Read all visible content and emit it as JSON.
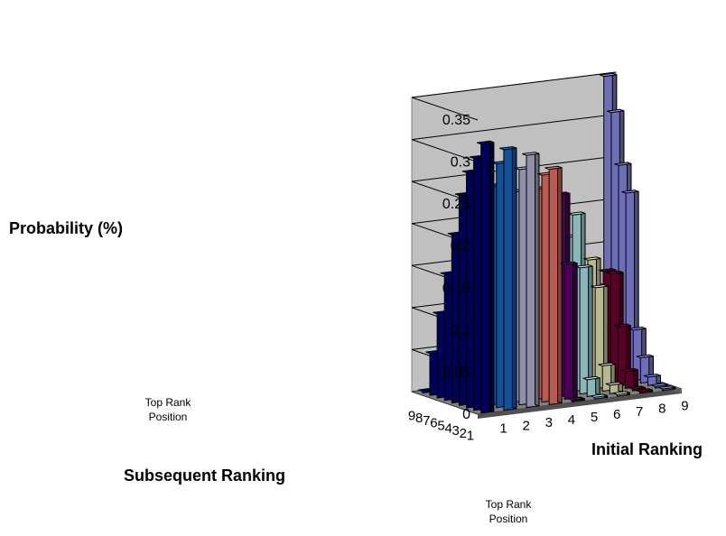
{
  "chart_data": {
    "type": "bar3d",
    "title": "",
    "zlabel": "Probability (%)",
    "xlabel": "Initial Ranking",
    "ylabel": "Subsequent Ranking",
    "xnote": "Top Rank Position",
    "ynote": "Top Rank Position",
    "zlim": [
      0,
      0.35
    ],
    "zticks": [
      "0",
      "0.05",
      "0.1",
      "0.15",
      "0.2",
      "0.25",
      "0.3",
      "0.35"
    ],
    "initial_ranking": [
      "1",
      "2",
      "3",
      "4",
      "5",
      "6",
      "7",
      "8",
      "9"
    ],
    "subsequent_ranking": [
      "9",
      "8",
      "7",
      "6",
      "5",
      "4",
      "3",
      "2",
      "1"
    ],
    "series_colors": [
      "#000080",
      "#1a6fd1",
      "#c8c8f0",
      "#ff7f72",
      "#680078",
      "#c0ffff",
      "#ffffc8",
      "#7a0033",
      "#9999ff"
    ],
    "values": [
      [
        0.0,
        0.03,
        0.01,
        0.01,
        0.01,
        0.02,
        0.0,
        0.0,
        0.35
      ],
      [
        0.05,
        0.06,
        0.05,
        0.06,
        0.05,
        0.05,
        0.02,
        0.01,
        0.31
      ],
      [
        0.1,
        0.1,
        0.11,
        0.11,
        0.08,
        0.1,
        0.09,
        0.08,
        0.25
      ],
      [
        0.15,
        0.15,
        0.14,
        0.13,
        0.14,
        0.13,
        0.13,
        0.13,
        0.22
      ],
      [
        0.2,
        0.18,
        0.17,
        0.17,
        0.17,
        0.18,
        0.15,
        0.13,
        0.06
      ],
      [
        0.25,
        0.23,
        0.23,
        0.22,
        0.22,
        0.21,
        0.12,
        0.07,
        0.03
      ],
      [
        0.28,
        0.26,
        0.25,
        0.25,
        0.24,
        0.15,
        0.03,
        0.02,
        0.01
      ],
      [
        0.3,
        0.29,
        0.28,
        0.27,
        0.16,
        0.02,
        0.01,
        0.0,
        0.0
      ],
      [
        0.32,
        0.31,
        0.3,
        0.28,
        0.0,
        0.0,
        0.0,
        0.0,
        0.0
      ]
    ]
  }
}
